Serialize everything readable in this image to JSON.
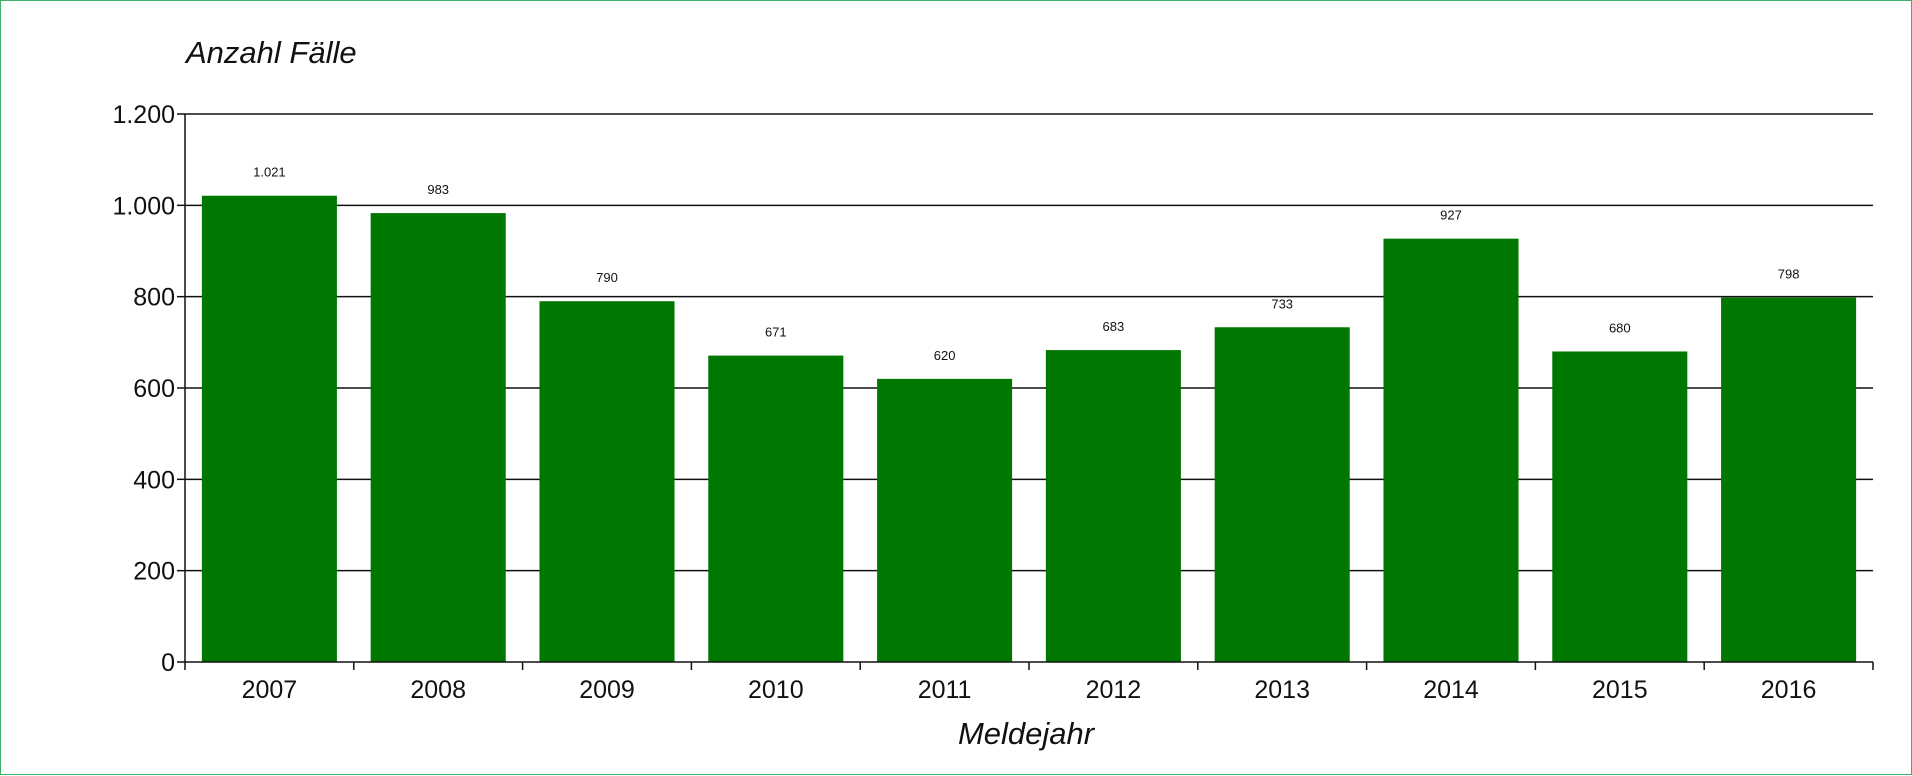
{
  "chart_data": {
    "type": "bar",
    "title": "",
    "xlabel": "Meldejahr",
    "ylabel": "Anzahl Fälle",
    "categories": [
      "2007",
      "2008",
      "2009",
      "2010",
      "2011",
      "2012",
      "2013",
      "2014",
      "2015",
      "2016"
    ],
    "values": [
      1021,
      983,
      790,
      671,
      620,
      683,
      733,
      927,
      680,
      798
    ],
    "value_labels": [
      "1.021",
      "983",
      "790",
      "671",
      "620",
      "683",
      "733",
      "927",
      "680",
      "798"
    ],
    "ylim": [
      0,
      1200
    ],
    "yticks": [
      0,
      200,
      400,
      600,
      800,
      1000,
      1200
    ],
    "ytick_labels": [
      "0",
      "200",
      "400",
      "600",
      "800",
      "1.000",
      "1.200"
    ],
    "grid": true,
    "legend": "none",
    "bar_color": "#007700",
    "frame_color": "#3fae6a"
  }
}
